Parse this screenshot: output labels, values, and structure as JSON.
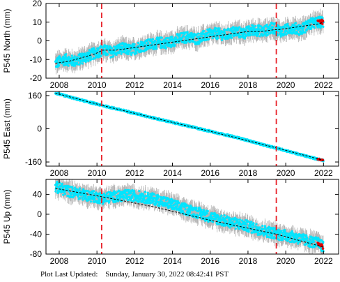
{
  "chart_data": [
    {
      "type": "scatter",
      "ylabel": "P545 North (mm)",
      "xlim": [
        2007.3,
        2022.8
      ],
      "ylim": [
        -20,
        20
      ],
      "xticks": [
        2008,
        2010,
        2012,
        2014,
        2016,
        2018,
        2020,
        2022
      ],
      "yticks": [
        -20,
        -10,
        0,
        10,
        20
      ],
      "event_lines": [
        2010.25,
        2019.5
      ],
      "series": [
        {
          "values_kind": "observations",
          "x": [
            2007.8,
            2008.3,
            2008.8,
            2009.3,
            2009.8,
            2010.3,
            2010.8,
            2011.3,
            2011.8,
            2012.3,
            2012.8,
            2013.3,
            2013.8,
            2014.3,
            2014.8,
            2015.3,
            2015.8,
            2016.3,
            2016.8,
            2017.3,
            2017.8,
            2018.3,
            2018.8,
            2019.3,
            2019.8,
            2020.3,
            2020.8,
            2021.3,
            2021.8,
            2022.0
          ],
          "y": [
            -12,
            -10,
            -11,
            -9,
            -7,
            -5,
            -6,
            -4,
            -5,
            -3,
            -2,
            -1,
            -1,
            1,
            2,
            1,
            3,
            4,
            3,
            5,
            4,
            6,
            5,
            7,
            5,
            7,
            6,
            9,
            10,
            10
          ]
        },
        {
          "values_kind": "model",
          "x": [
            2007.8,
            2008.5,
            2009.2,
            2009.9,
            2010.3,
            2011,
            2011.7,
            2012.4,
            2013.1,
            2013.8,
            2014.5,
            2015.2,
            2015.9,
            2016.6,
            2017.3,
            2018,
            2018.7,
            2019.4,
            2019.6,
            2020.3,
            2021,
            2021.7,
            2022.0
          ],
          "y": [
            -12,
            -11,
            -9,
            -7,
            -5,
            -5,
            -4,
            -3,
            -2,
            -1,
            0,
            1,
            2,
            3,
            4,
            5,
            5,
            6,
            6,
            7,
            8,
            9,
            10
          ]
        }
      ]
    },
    {
      "type": "scatter",
      "ylabel": "P545 East (mm)",
      "xlim": [
        2007.3,
        2022.8
      ],
      "ylim": [
        -180,
        180
      ],
      "xticks": [
        2008,
        2010,
        2012,
        2014,
        2016,
        2018,
        2020,
        2022
      ],
      "yticks": [
        -160,
        0,
        160
      ],
      "event_lines": [
        2010.25,
        2019.5
      ],
      "series": [
        {
          "values_kind": "observations",
          "x": [
            2007.8,
            2009,
            2010.3,
            2011.5,
            2013,
            2014.5,
            2016,
            2017.5,
            2019,
            2019.5,
            2020.5,
            2021.5,
            2022.0
          ],
          "y": [
            172,
            142,
            112,
            86,
            52,
            20,
            -12,
            -44,
            -82,
            -92,
            -118,
            -142,
            -152
          ]
        },
        {
          "values_kind": "model",
          "x": [
            2007.8,
            2010.3,
            2013,
            2016,
            2019.5,
            2022.0
          ],
          "y": [
            172,
            112,
            52,
            -12,
            -92,
            -152
          ]
        }
      ]
    },
    {
      "type": "scatter",
      "ylabel": "P545 Up (mm)",
      "xlim": [
        2007.3,
        2022.8
      ],
      "ylim": [
        -80,
        70
      ],
      "xticks": [
        2008,
        2010,
        2012,
        2014,
        2016,
        2018,
        2020,
        2022
      ],
      "yticks": [
        -80,
        -40,
        0,
        40
      ],
      "event_lines": [
        2010.25,
        2019.5
      ],
      "series": [
        {
          "values_kind": "observations",
          "x": [
            2007.8,
            2008.5,
            2009.2,
            2009.9,
            2010.3,
            2011,
            2011.7,
            2012.4,
            2013.1,
            2013.8,
            2014.5,
            2015.2,
            2015.9,
            2016.6,
            2017.3,
            2018,
            2018.7,
            2019.4,
            2019.6,
            2020.3,
            2021,
            2021.7,
            2022.0
          ],
          "y": [
            55,
            46,
            40,
            35,
            32,
            36,
            38,
            35,
            30,
            22,
            12,
            5,
            -4,
            -12,
            -18,
            -24,
            -32,
            -38,
            -40,
            -45,
            -52,
            -58,
            -66
          ]
        },
        {
          "values_kind": "model",
          "x": [
            2007.8,
            2010.3,
            2013,
            2016,
            2019.5,
            2022.0
          ],
          "y": [
            52,
            35,
            15,
            -12,
            -40,
            -66
          ]
        }
      ]
    }
  ],
  "footer": {
    "label": "Plot Last Updated:",
    "date": "Sunday, January 30, 2022 08:42:41 PST"
  }
}
